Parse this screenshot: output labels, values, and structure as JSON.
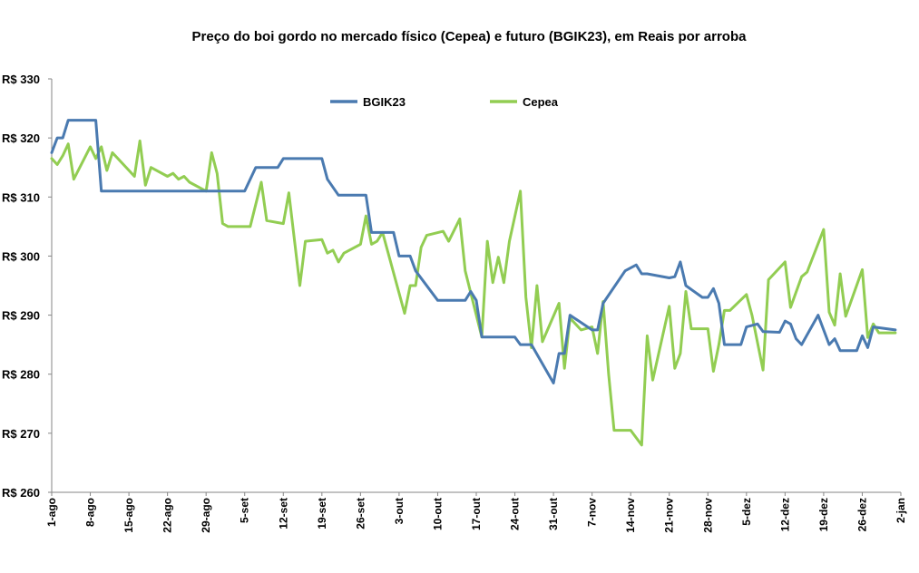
{
  "chart_data": {
    "type": "line",
    "title": "Preço do boi gordo no  mercado físico (Cepea) e futuro (BGIK23), em Reais por arroba",
    "xlabel": "",
    "ylabel": "",
    "ylim": [
      260,
      330
    ],
    "yticks": [
      {
        "value": 260,
        "label": "R$ 260"
      },
      {
        "value": 270,
        "label": "R$ 270"
      },
      {
        "value": 280,
        "label": "R$ 280"
      },
      {
        "value": 290,
        "label": "R$ 290"
      },
      {
        "value": 300,
        "label": "R$ 300"
      },
      {
        "value": 310,
        "label": "R$ 310"
      },
      {
        "value": 320,
        "label": "R$ 320"
      },
      {
        "value": 330,
        "label": "R$ 330"
      }
    ],
    "xticks": [
      "1-ago",
      "8-ago",
      "15-ago",
      "22-ago",
      "29-ago",
      "5-set",
      "12-set",
      "19-set",
      "26-set",
      "3-out",
      "10-out",
      "17-out",
      "24-out",
      "31-out",
      "7-nov",
      "14-nov",
      "21-nov",
      "28-nov",
      "5-dez",
      "12-dez",
      "19-dez",
      "26-dez",
      "2-jan"
    ],
    "grid": false,
    "legend_position": "top-center",
    "colors": {
      "BGIK23": "#4a7ab0",
      "Cepea": "#92cd52"
    },
    "series": [
      {
        "name": "BGIK23",
        "points": [
          [
            0,
            317.5
          ],
          [
            1,
            320
          ],
          [
            2,
            320
          ],
          [
            3,
            323
          ],
          [
            8,
            323
          ],
          [
            9,
            311
          ],
          [
            28,
            311
          ],
          [
            29,
            311
          ],
          [
            35,
            311
          ],
          [
            37,
            315
          ],
          [
            41,
            315
          ],
          [
            42,
            316.5
          ],
          [
            49,
            316.5
          ],
          [
            50,
            313
          ],
          [
            52,
            310.3
          ],
          [
            57,
            310.3
          ],
          [
            58,
            304
          ],
          [
            62,
            304
          ],
          [
            63,
            300
          ],
          [
            65,
            300
          ],
          [
            66,
            297.5
          ],
          [
            70,
            292.5
          ],
          [
            75,
            292.5
          ],
          [
            76,
            294
          ],
          [
            77,
            292.5
          ],
          [
            78,
            286.3
          ],
          [
            84,
            286.3
          ],
          [
            85,
            285
          ],
          [
            87,
            285
          ],
          [
            91,
            278.5
          ],
          [
            92,
            283.5
          ],
          [
            93,
            283.5
          ],
          [
            94,
            290
          ],
          [
            98,
            287.5
          ],
          [
            99,
            287.5
          ],
          [
            100,
            292
          ],
          [
            104,
            297.5
          ],
          [
            106,
            298.5
          ],
          [
            107,
            297
          ],
          [
            108,
            297
          ],
          [
            112,
            296.3
          ],
          [
            113,
            296.5
          ],
          [
            114,
            299
          ],
          [
            115,
            295
          ],
          [
            118,
            293
          ],
          [
            119,
            293
          ],
          [
            120,
            294.5
          ],
          [
            121,
            292
          ],
          [
            122,
            285
          ],
          [
            125,
            285
          ],
          [
            126,
            288
          ],
          [
            128,
            288.5
          ],
          [
            129,
            287.2
          ],
          [
            132,
            287.1
          ],
          [
            133,
            289
          ],
          [
            134,
            288.5
          ],
          [
            135,
            286
          ],
          [
            136,
            285
          ],
          [
            139,
            290
          ],
          [
            141,
            285
          ],
          [
            142,
            286
          ],
          [
            143,
            284
          ],
          [
            146,
            284
          ],
          [
            147,
            286.5
          ],
          [
            148,
            284.5
          ],
          [
            149,
            288
          ],
          [
            153,
            287.5
          ]
        ]
      },
      {
        "name": "Cepea",
        "points": [
          [
            0,
            316.5
          ],
          [
            1,
            315.5
          ],
          [
            2,
            317
          ],
          [
            3,
            319
          ],
          [
            4,
            313
          ],
          [
            7,
            318.5
          ],
          [
            8,
            316.5
          ],
          [
            9,
            318.5
          ],
          [
            10,
            314.5
          ],
          [
            11,
            317.5
          ],
          [
            15,
            313.5
          ],
          [
            16,
            319.5
          ],
          [
            17,
            312
          ],
          [
            18,
            315
          ],
          [
            21,
            313.5
          ],
          [
            22,
            314
          ],
          [
            23,
            313
          ],
          [
            24,
            313.5
          ],
          [
            25,
            312.5
          ],
          [
            28,
            311
          ],
          [
            29,
            317.5
          ],
          [
            30,
            314
          ],
          [
            31,
            305.5
          ],
          [
            32,
            305
          ],
          [
            36,
            305
          ],
          [
            38,
            312.5
          ],
          [
            39,
            306
          ],
          [
            42,
            305.5
          ],
          [
            43,
            310.7
          ],
          [
            45,
            295
          ],
          [
            46,
            302.5
          ],
          [
            49,
            302.8
          ],
          [
            50,
            300.5
          ],
          [
            51,
            301
          ],
          [
            52,
            299
          ],
          [
            53,
            300.5
          ],
          [
            56,
            302
          ],
          [
            57,
            306.8
          ],
          [
            58,
            302
          ],
          [
            59,
            302.5
          ],
          [
            60,
            304
          ],
          [
            64,
            290.3
          ],
          [
            65,
            295
          ],
          [
            66,
            295
          ],
          [
            67,
            301.5
          ],
          [
            68,
            303.5
          ],
          [
            71,
            304.2
          ],
          [
            72,
            302.5
          ],
          [
            74,
            306.3
          ],
          [
            75,
            297.5
          ],
          [
            78,
            286.3
          ],
          [
            79,
            302.5
          ],
          [
            80,
            295.5
          ],
          [
            81,
            299.8
          ],
          [
            82,
            295.5
          ],
          [
            83,
            302.5
          ],
          [
            85,
            311
          ],
          [
            86,
            293
          ],
          [
            87,
            284.5
          ],
          [
            88,
            295
          ],
          [
            89,
            285.5
          ],
          [
            92,
            292
          ],
          [
            93,
            281
          ],
          [
            94,
            289.5
          ],
          [
            96,
            287.5
          ],
          [
            98,
            288
          ],
          [
            99,
            283.5
          ],
          [
            100,
            292.3
          ],
          [
            101,
            280
          ],
          [
            102,
            270.5
          ],
          [
            105,
            270.5
          ],
          [
            107,
            268
          ],
          [
            108,
            286.5
          ],
          [
            109,
            279
          ],
          [
            112,
            291.5
          ],
          [
            113,
            281
          ],
          [
            114,
            283.5
          ],
          [
            115,
            294
          ],
          [
            116,
            287.7
          ],
          [
            119,
            287.7
          ],
          [
            120,
            280.5
          ],
          [
            121,
            285
          ],
          [
            122,
            290.8
          ],
          [
            123,
            290.8
          ],
          [
            126,
            293.5
          ],
          [
            127,
            290
          ],
          [
            129,
            280.7
          ],
          [
            130,
            296
          ],
          [
            133,
            299
          ],
          [
            134,
            291.3
          ],
          [
            136,
            296.5
          ],
          [
            137,
            297.3
          ],
          [
            140,
            304.5
          ],
          [
            141,
            290.5
          ],
          [
            142,
            288.3
          ],
          [
            143,
            297
          ],
          [
            144,
            289.8
          ],
          [
            147,
            297.7
          ],
          [
            148,
            286.2
          ],
          [
            149,
            288.5
          ],
          [
            150,
            287
          ],
          [
            153,
            287
          ]
        ]
      }
    ]
  }
}
